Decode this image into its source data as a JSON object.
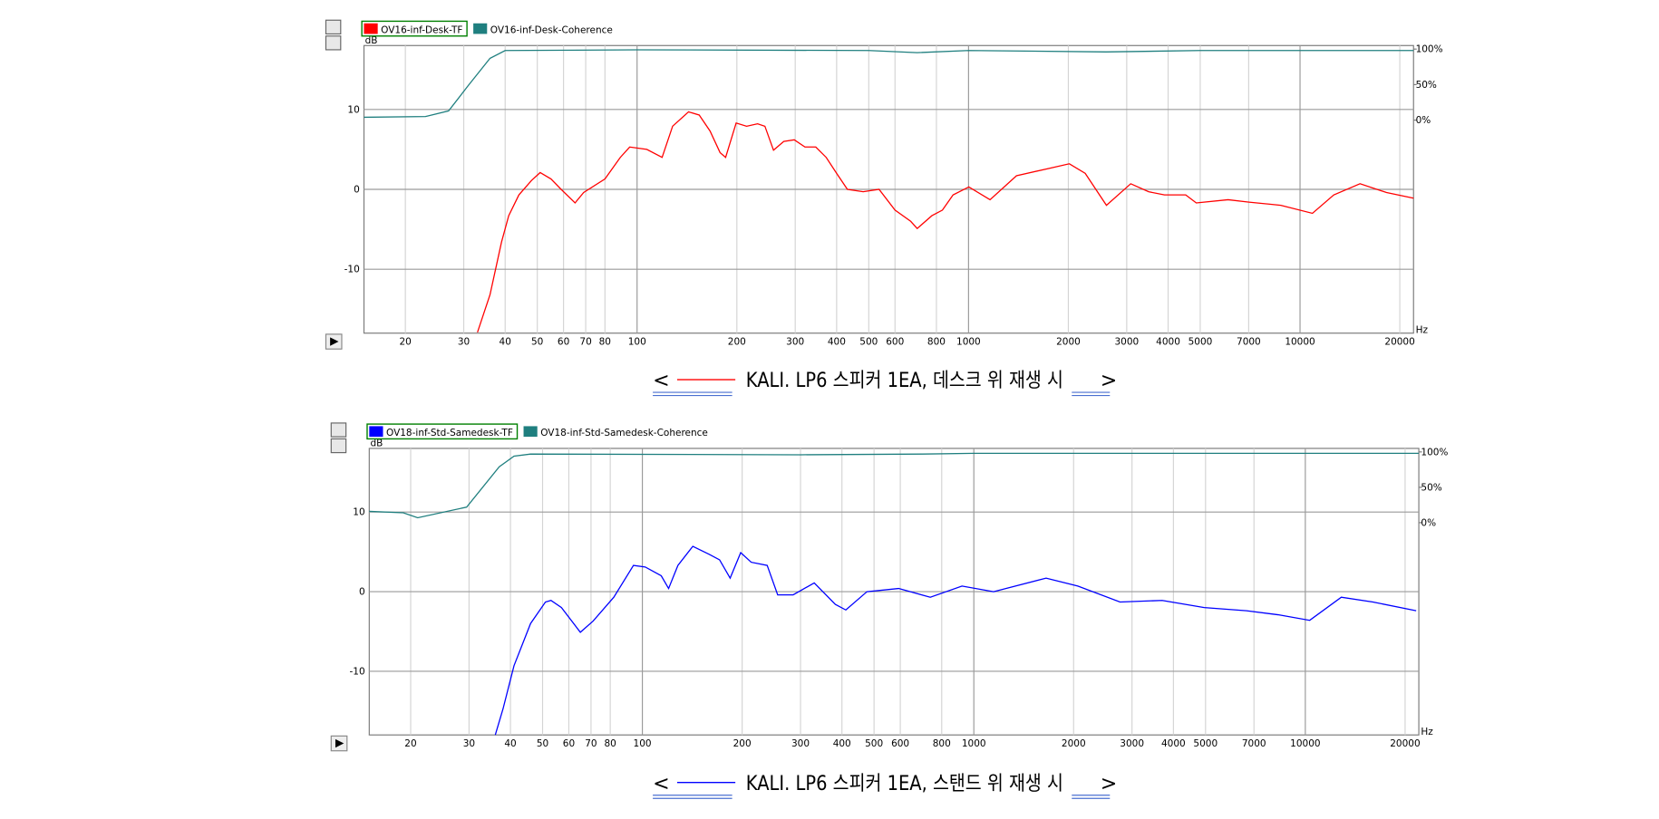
{
  "chart_data": [
    {
      "type": "line",
      "xscale": "log",
      "xlim": [
        15,
        22000
      ],
      "ylim": [
        -18,
        18
      ],
      "y2lim": [
        -300,
        105
      ],
      "xticks": [
        20,
        30,
        40,
        50,
        60,
        70,
        80,
        100,
        200,
        300,
        400,
        500,
        600,
        800,
        1000,
        2000,
        3000,
        4000,
        5000,
        7000,
        10000,
        20000
      ],
      "yticks": [
        -10,
        0,
        10
      ],
      "y2ticks": [
        {
          "value": 0,
          "label": "0%"
        },
        {
          "value": 50,
          "label": "50%"
        },
        {
          "value": 100,
          "label": "100%"
        }
      ],
      "ylabel": "dB",
      "xlabel": "Hz",
      "grid": true,
      "caption_parts": [
        "<",
        "KALI. LP6 스피커 1EA, 데스크 위 재생 시",
        ">"
      ],
      "series": [
        {
          "name": "OV16-inf-Desk-TF",
          "color": "#ff0000",
          "x": [
            33,
            36,
            39,
            41,
            44,
            48,
            51,
            55,
            59,
            65,
            69,
            80,
            89,
            95,
            107,
            119,
            128,
            143,
            154,
            166,
            178,
            185,
            199,
            214,
            231,
            243,
            258,
            277,
            298,
            321,
            346,
            372,
            400,
            431,
            481,
            537,
            600,
            669,
            700,
            775,
            834,
            898,
            1002,
            1161,
            1395,
            1738,
            2014,
            2249,
            2606,
            3085,
            3494,
            3900,
            4519,
            4864,
            6067,
            7015,
            8750,
            10900,
            12640,
            15170,
            18240,
            22000
          ],
          "values": [
            -17.9,
            -13.2,
            -6.6,
            -3.3,
            -0.7,
            1.1,
            2.1,
            1.3,
            0,
            -1.7,
            -0.4,
            1.3,
            4.0,
            5.3,
            5.0,
            4.0,
            7.9,
            9.7,
            9.3,
            7.3,
            4.6,
            4.0,
            8.3,
            7.9,
            8.2,
            7.9,
            4.9,
            6.0,
            6.2,
            5.3,
            5.3,
            4.0,
            2.0,
            0,
            -0.3,
            0,
            -2.6,
            -4.0,
            -4.9,
            -3.3,
            -2.6,
            -0.7,
            0.3,
            -1.3,
            1.7,
            2.6,
            3.2,
            2.0,
            -2.0,
            0.7,
            -0.3,
            -0.7,
            -0.7,
            -1.7,
            -1.3,
            -1.6,
            -2.0,
            -3.0,
            -0.7,
            0.7,
            -0.4,
            -1.1
          ]
        },
        {
          "name": "OV16-inf-Desk-Coherence",
          "color": "#1f7f7f",
          "axis": "y2",
          "x": [
            15,
            23,
            27,
            31,
            36,
            40,
            100,
            500,
            700,
            1000,
            2600,
            5000,
            22000
          ],
          "values": [
            4,
            5,
            13,
            49,
            87,
            98,
            99,
            98,
            95,
            98,
            96,
            98,
            98
          ]
        }
      ]
    },
    {
      "type": "line",
      "xscale": "log",
      "xlim": [
        15,
        22000
      ],
      "ylim": [
        -18,
        18
      ],
      "y2lim": [
        -300,
        105
      ],
      "xticks": [
        20,
        30,
        40,
        50,
        60,
        70,
        80,
        100,
        200,
        300,
        400,
        500,
        600,
        800,
        1000,
        2000,
        3000,
        4000,
        5000,
        7000,
        10000,
        20000
      ],
      "yticks": [
        -10,
        0,
        10
      ],
      "y2ticks": [
        {
          "value": 0,
          "label": "0%"
        },
        {
          "value": 50,
          "label": "50%"
        },
        {
          "value": 100,
          "label": "100%"
        }
      ],
      "ylabel": "dB",
      "xlabel": "Hz",
      "grid": true,
      "caption_parts": [
        "<",
        "KALI. LP6 스피커 1EA, 스탠드 위 재생 시",
        ">"
      ],
      "series": [
        {
          "name": "OV18-inf-Std-Samedesk-TF",
          "color": "#0000ff",
          "x": [
            36,
            38,
            41,
            46,
            51,
            53,
            57,
            65,
            71,
            82,
            94,
            102,
            114,
            120,
            128,
            142,
            159,
            171,
            184,
            198,
            213,
            238,
            256,
            285,
            330,
            382,
            411,
            476,
            593,
            739,
            921,
            1147,
            1652,
            2059,
            2761,
            3700,
            4955,
            6644,
            8276,
            10310,
            12840,
            16000,
            21600
          ],
          "values": [
            -18.0,
            -14.7,
            -9.3,
            -4.0,
            -1.3,
            -1.1,
            -2.0,
            -5.1,
            -3.7,
            -0.7,
            3.3,
            3.1,
            2.0,
            0.4,
            3.3,
            5.7,
            4.7,
            4.0,
            1.7,
            4.9,
            3.7,
            3.3,
            -0.4,
            -0.4,
            1.1,
            -1.6,
            -2.3,
            0,
            0.4,
            -0.7,
            0.7,
            0,
            1.7,
            0.7,
            -1.3,
            -1.1,
            -2.0,
            -2.4,
            -2.9,
            -3.6,
            -0.7,
            -1.3,
            -2.4
          ]
        },
        {
          "name": "OV18-inf-Std-Samedesk-Coherence",
          "color": "#1f7f7f",
          "axis": "y2",
          "x": [
            15,
            19,
            21,
            29.5,
            37,
            41,
            46,
            300,
            700,
            1000,
            20000,
            22000
          ],
          "values": [
            16,
            14,
            7,
            22,
            79,
            94,
            97,
            96,
            97,
            98,
            98,
            98
          ]
        }
      ]
    }
  ]
}
